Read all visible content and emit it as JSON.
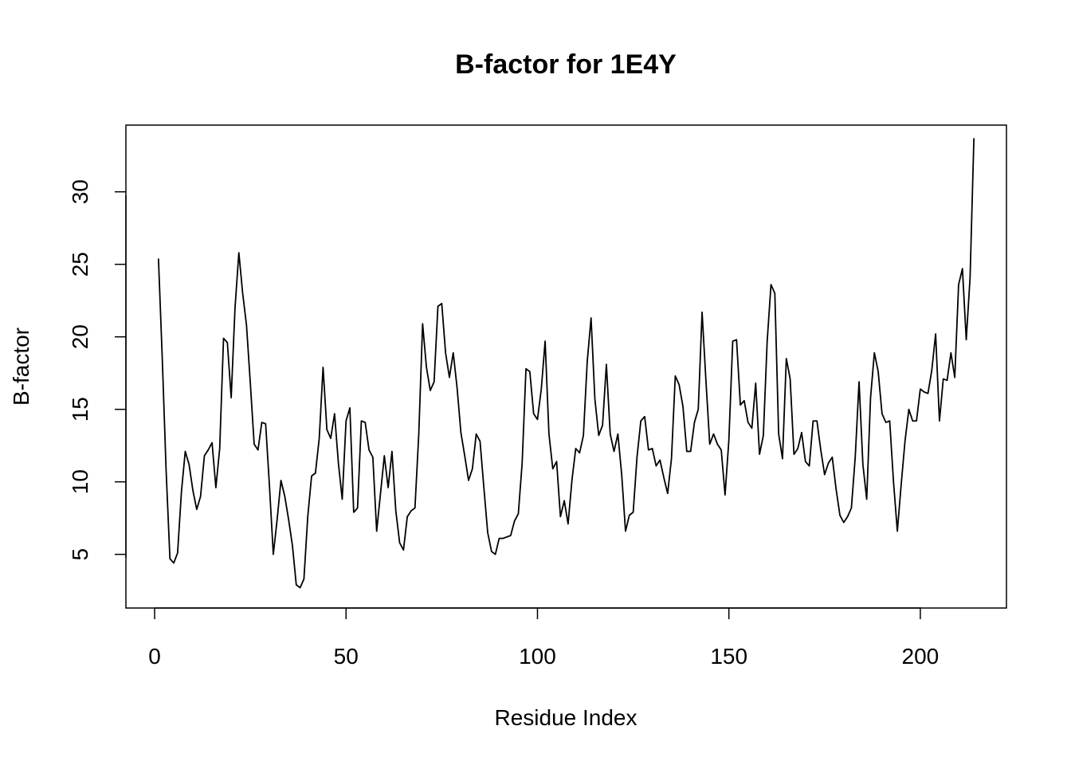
{
  "chart_data": {
    "type": "line",
    "title": "B-factor for 1E4Y",
    "xlabel": "Residue Index",
    "ylabel": "B-factor",
    "xlim": [
      -7.5,
      222.5
    ],
    "ylim": [
      1.3,
      34.6
    ],
    "x_ticks": [
      0,
      50,
      100,
      150,
      200
    ],
    "y_ticks": [
      5,
      10,
      15,
      20,
      25,
      30
    ],
    "x_tick_labels": [
      "0",
      "50",
      "100",
      "150",
      "200"
    ],
    "y_tick_labels": [
      "5",
      "10",
      "15",
      "20",
      "25",
      "30"
    ],
    "grid": false,
    "series": [
      {
        "color": "#000000",
        "x_start": 1,
        "values": [
          25.4,
          18.5,
          10.8,
          4.7,
          4.4,
          5.1,
          9.3,
          12.1,
          11.2,
          9.4,
          8.1,
          9.0,
          11.8,
          12.2,
          12.7,
          9.6,
          12.3,
          19.9,
          19.6,
          15.8,
          22.0,
          25.8,
          23.0,
          20.8,
          16.8,
          12.6,
          12.2,
          14.1,
          14.0,
          9.7,
          5.0,
          7.4,
          10.1,
          9.0,
          7.4,
          5.6,
          2.9,
          2.7,
          3.3,
          7.6,
          10.4,
          10.6,
          13.0,
          17.9,
          13.6,
          13.0,
          14.7,
          11.3,
          8.8,
          14.2,
          15.1,
          7.9,
          8.2,
          14.2,
          14.1,
          12.2,
          11.7,
          6.6,
          9.2,
          11.8,
          9.6,
          12.1,
          8.0,
          5.8,
          5.3,
          7.6,
          8.0,
          8.2,
          13.3,
          20.9,
          17.9,
          16.3,
          16.9,
          22.1,
          22.3,
          18.9,
          17.2,
          18.9,
          16.5,
          13.4,
          11.8,
          10.1,
          10.9,
          13.3,
          12.8,
          9.6,
          6.5,
          5.2,
          5.0,
          6.1,
          6.1,
          6.2,
          6.3,
          7.3,
          7.8,
          11.3,
          17.8,
          17.6,
          14.7,
          14.3,
          16.4,
          19.7,
          13.3,
          10.9,
          11.4,
          7.6,
          8.7,
          7.1,
          10.1,
          12.3,
          12.0,
          13.2,
          18.3,
          21.3,
          15.7,
          13.2,
          13.9,
          18.1,
          13.3,
          12.1,
          13.3,
          10.5,
          6.6,
          7.7,
          7.9,
          11.7,
          14.2,
          14.5,
          12.2,
          12.3,
          11.1,
          11.5,
          10.3,
          9.2,
          11.6,
          17.3,
          16.7,
          15.2,
          12.1,
          12.1,
          14.1,
          15.0,
          21.7,
          17.0,
          12.6,
          13.3,
          12.6,
          12.2,
          9.1,
          12.9,
          19.7,
          19.8,
          15.3,
          15.6,
          14.1,
          13.7,
          16.8,
          11.9,
          13.2,
          19.7,
          23.6,
          23.0,
          13.3,
          11.6,
          18.5,
          17.1,
          11.9,
          12.3,
          13.4,
          11.4,
          11.1,
          14.2,
          14.2,
          12.2,
          10.5,
          11.3,
          11.7,
          9.5,
          7.7,
          7.2,
          7.6,
          8.2,
          11.7,
          16.9,
          11.2,
          8.8,
          15.8,
          18.9,
          17.6,
          14.7,
          14.1,
          14.2,
          10.0,
          6.6,
          9.8,
          12.8,
          15.0,
          14.2,
          14.2,
          16.4,
          16.2,
          16.1,
          17.7,
          20.2,
          14.2,
          17.1,
          17.0,
          18.9,
          17.2,
          23.6,
          24.7,
          19.8,
          24.1,
          33.7
        ]
      }
    ]
  }
}
